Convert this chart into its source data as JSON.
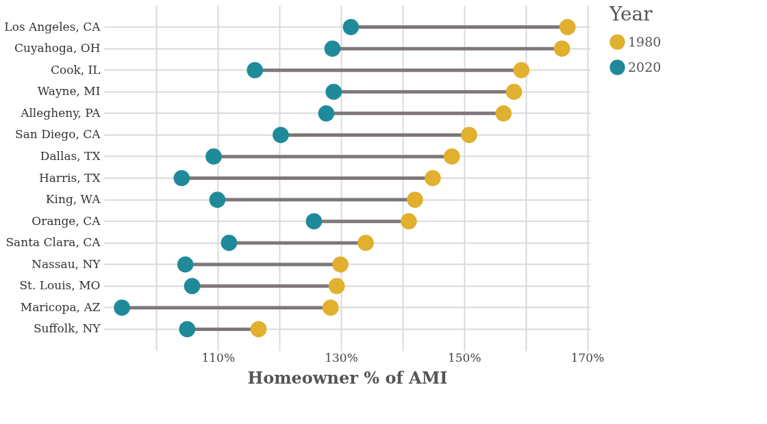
{
  "chart_data": {
    "type": "scatter",
    "orientation": "horizontal",
    "xlabel": "Homeowner % of AMI",
    "legend_title": "Year",
    "legend": "right",
    "grid": true,
    "marker": "circle",
    "categories": [
      "Los Angeles, CA",
      "Cuyahoga, OH",
      "Cook, IL",
      "Wayne, MI",
      "Allegheny, PA",
      "San Diego, CA",
      "Dallas, TX",
      "Harris, TX",
      "King, WA",
      "Orange, CA",
      "Santa Clara, CA",
      "Nassau, NY",
      "St. Louis, MO",
      "Maricopa, AZ",
      "Suffolk, NY"
    ],
    "xlim": [
      91.5,
      170.5
    ],
    "xticks": [
      {
        "value": 100,
        "label": null
      },
      {
        "value": 110,
        "label": "110%"
      },
      {
        "value": 120,
        "label": null
      },
      {
        "value": 130,
        "label": "130%"
      },
      {
        "value": 140,
        "label": null
      },
      {
        "value": 150,
        "label": "150%"
      },
      {
        "value": 160,
        "label": null
      },
      {
        "value": 170,
        "label": "170%"
      }
    ],
    "series": [
      {
        "name": "1980",
        "color": "#e0b02e",
        "values": [
          166.8,
          165.9,
          159.3,
          158.1,
          156.4,
          150.8,
          148.0,
          144.9,
          142.0,
          141.0,
          134.0,
          129.9,
          129.3,
          128.3,
          116.6
        ]
      },
      {
        "name": "2020",
        "color": "#1f8a9a",
        "values": [
          131.6,
          128.6,
          116.0,
          128.8,
          127.6,
          120.2,
          109.3,
          104.1,
          109.9,
          125.6,
          111.8,
          104.7,
          105.8,
          94.4,
          105.0
        ]
      }
    ]
  }
}
